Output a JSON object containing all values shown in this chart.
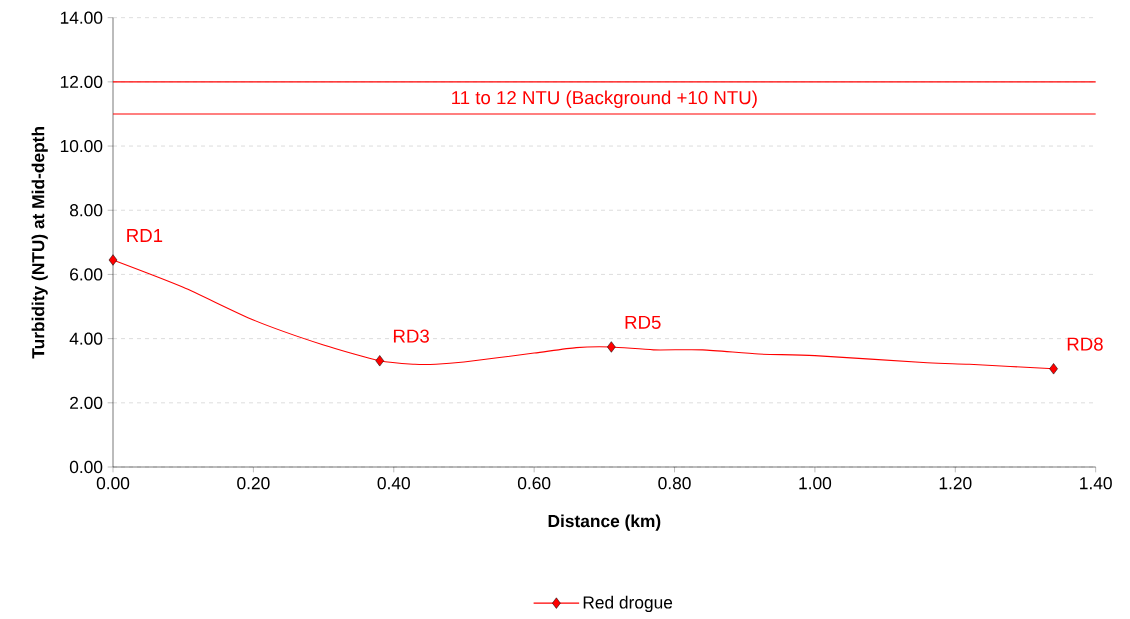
{
  "chart_data": {
    "type": "line",
    "xlabel": "Distance (km)",
    "ylabel": "Turbidity (NTU) at Mid-depth",
    "xlim": [
      0,
      1.4
    ],
    "ylim": [
      0,
      14
    ],
    "xticks": [
      {
        "value": 0,
        "label": "0.00"
      },
      {
        "value": 0.2,
        "label": "0.20"
      },
      {
        "value": 0.4,
        "label": "0.40"
      },
      {
        "value": 0.6,
        "label": "0.60"
      },
      {
        "value": 0.8,
        "label": "0.80"
      },
      {
        "value": 1.0,
        "label": "1.00"
      },
      {
        "value": 1.2,
        "label": "1.20"
      },
      {
        "value": 1.4,
        "label": "1.40"
      }
    ],
    "yticks": [
      {
        "value": 0,
        "label": "0.00"
      },
      {
        "value": 2,
        "label": "2.00"
      },
      {
        "value": 4,
        "label": "4.00"
      },
      {
        "value": 6,
        "label": "6.00"
      },
      {
        "value": 8,
        "label": "8.00"
      },
      {
        "value": 10,
        "label": "10.00"
      },
      {
        "value": 12,
        "label": "12.00"
      },
      {
        "value": 14,
        "label": "14.00"
      }
    ],
    "grid": "y",
    "legend": "bottom",
    "series": [
      {
        "color": "#ff0000",
        "marker": "none",
        "x": [
          0,
          0.1,
          0.2,
          0.3,
          0.38,
          0.43,
          0.46,
          0.5,
          0.6,
          0.66,
          0.71,
          0.77,
          0.84,
          0.92,
          1.0,
          1.16,
          1.22,
          1.34
        ],
        "values": [
          6.45,
          5.6,
          4.58,
          3.8,
          3.31,
          3.2,
          3.2,
          3.27,
          3.55,
          3.72,
          3.74,
          3.65,
          3.65,
          3.52,
          3.47,
          3.25,
          3.2,
          3.06
        ]
      },
      {
        "type": "scatter",
        "name": "Red drogue",
        "color": "#ff0000",
        "marker": "diamond",
        "x": [
          0,
          0.38,
          0.71,
          1.34
        ],
        "values": [
          6.45,
          3.31,
          3.74,
          3.06
        ]
      }
    ],
    "ref_lines": [
      {
        "axis": "y",
        "value": 12,
        "color": "#ff0000"
      },
      {
        "axis": "y",
        "value": 11,
        "label": "11 to 12 NTU (Background +10 NTU)",
        "color": "#ff0000"
      }
    ],
    "annotations": [
      {
        "text": "RD1",
        "x": 0,
        "y": 6.45
      },
      {
        "text": "RD3",
        "x": 0.38,
        "y": 3.31
      },
      {
        "text": "RD5",
        "x": 0.71,
        "y": 3.74
      },
      {
        "text": "RD8",
        "x": 1.34,
        "y": 3.06
      }
    ]
  }
}
